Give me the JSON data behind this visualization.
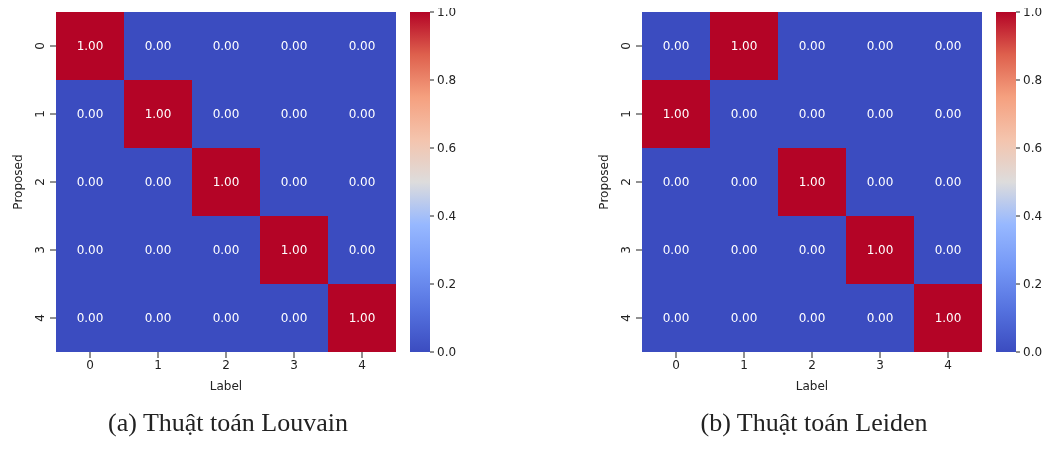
{
  "chart_data": [
    {
      "type": "heatmap",
      "title": "(a) Thuật toán Louvain",
      "xlabel": "Label",
      "ylabel": "Proposed",
      "categories": [
        "0",
        "1",
        "2",
        "3",
        "4"
      ],
      "y_categories": [
        "0",
        "1",
        "2",
        "3",
        "4"
      ],
      "cells": [
        [
          1,
          0,
          0,
          0,
          0
        ],
        [
          0,
          1,
          0,
          0,
          0
        ],
        [
          0,
          0,
          1,
          0,
          0
        ],
        [
          0,
          0,
          0,
          1,
          0
        ],
        [
          0,
          0,
          0,
          0,
          1
        ]
      ],
      "cell_labels": [
        [
          "1.00",
          "0.00",
          "0.00",
          "0.00",
          "0.00"
        ],
        [
          "0.00",
          "1.00",
          "0.00",
          "0.00",
          "0.00"
        ],
        [
          "0.00",
          "0.00",
          "1.00",
          "0.00",
          "0.00"
        ],
        [
          "0.00",
          "0.00",
          "0.00",
          "1.00",
          "0.00"
        ],
        [
          "0.00",
          "0.00",
          "0.00",
          "0.00",
          "1.00"
        ]
      ],
      "clim": [
        0,
        1
      ],
      "cticks": [
        {
          "value": 0,
          "label": "0.0"
        },
        {
          "value": 0.2,
          "label": "0.2"
        },
        {
          "value": 0.4,
          "label": "0.4"
        },
        {
          "value": 0.6,
          "label": "0.6"
        },
        {
          "value": 0.8,
          "label": "0.8"
        },
        {
          "value": 1,
          "label": "1.0"
        }
      ]
    },
    {
      "type": "heatmap",
      "title": "(b) Thuật toán Leiden",
      "xlabel": "Label",
      "ylabel": "Proposed",
      "categories": [
        "0",
        "1",
        "2",
        "3",
        "4"
      ],
      "y_categories": [
        "0",
        "1",
        "2",
        "3",
        "4"
      ],
      "cells": [
        [
          0,
          1,
          0,
          0,
          0
        ],
        [
          1,
          0,
          0,
          0,
          0
        ],
        [
          0,
          0,
          1,
          0,
          0
        ],
        [
          0,
          0,
          0,
          1,
          0
        ],
        [
          0,
          0,
          0,
          0,
          1
        ]
      ],
      "cell_labels": [
        [
          "0.00",
          "1.00",
          "0.00",
          "0.00",
          "0.00"
        ],
        [
          "1.00",
          "0.00",
          "0.00",
          "0.00",
          "0.00"
        ],
        [
          "0.00",
          "0.00",
          "1.00",
          "0.00",
          "0.00"
        ],
        [
          "0.00",
          "0.00",
          "0.00",
          "1.00",
          "0.00"
        ],
        [
          "0.00",
          "0.00",
          "0.00",
          "0.00",
          "1.00"
        ]
      ],
      "clim": [
        0,
        1
      ],
      "cticks": [
        {
          "value": 0,
          "label": "0.0"
        },
        {
          "value": 0.2,
          "label": "0.2"
        },
        {
          "value": 0.4,
          "label": "0.4"
        },
        {
          "value": 0.6,
          "label": "0.6"
        },
        {
          "value": 0.8,
          "label": "0.8"
        },
        {
          "value": 1,
          "label": "1.0"
        }
      ]
    }
  ]
}
